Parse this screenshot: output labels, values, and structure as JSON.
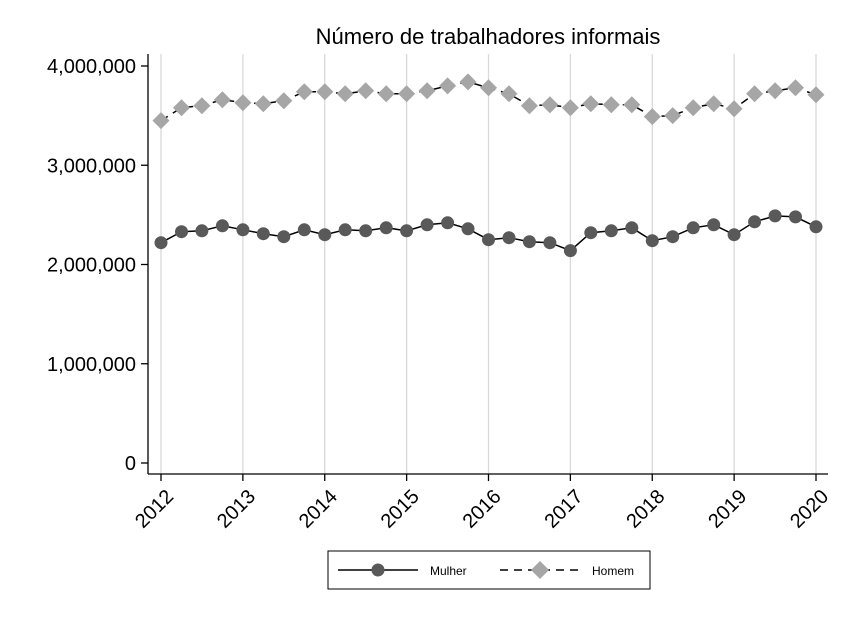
{
  "chart_data": {
    "type": "line",
    "title": "Número de trabalhadores informais",
    "xlabel": "",
    "ylabel": "",
    "x_start": 2012,
    "x_step": 0.25,
    "xlim": [
      2012,
      2020
    ],
    "ylim": [
      0,
      4000000
    ],
    "x_ticks": [
      "2012",
      "2013",
      "2014",
      "2015",
      "2016",
      "2017",
      "2018",
      "2019",
      "2020"
    ],
    "y_ticks": [
      "0",
      "1,000,000",
      "2,000,000",
      "3,000,000",
      "4,000,000"
    ],
    "grid": "vertical",
    "legend_position": "bottom",
    "series": [
      {
        "name": "Mulher",
        "color": "#595959",
        "marker": "circle",
        "line": "solid",
        "values": [
          2220000,
          2330000,
          2340000,
          2390000,
          2350000,
          2310000,
          2280000,
          2350000,
          2300000,
          2350000,
          2340000,
          2370000,
          2340000,
          2400000,
          2420000,
          2360000,
          2250000,
          2270000,
          2230000,
          2220000,
          2140000,
          2320000,
          2340000,
          2370000,
          2240000,
          2280000,
          2370000,
          2400000,
          2300000,
          2430000,
          2490000,
          2480000,
          2380000
        ]
      },
      {
        "name": "Homem",
        "color": "#a6a6a6",
        "marker": "diamond",
        "line": "dashed",
        "values": [
          3450000,
          3580000,
          3600000,
          3660000,
          3630000,
          3620000,
          3650000,
          3740000,
          3740000,
          3720000,
          3750000,
          3720000,
          3720000,
          3750000,
          3800000,
          3840000,
          3780000,
          3720000,
          3600000,
          3610000,
          3580000,
          3620000,
          3610000,
          3610000,
          3490000,
          3500000,
          3580000,
          3620000,
          3570000,
          3720000,
          3750000,
          3780000,
          3710000
        ]
      }
    ]
  }
}
